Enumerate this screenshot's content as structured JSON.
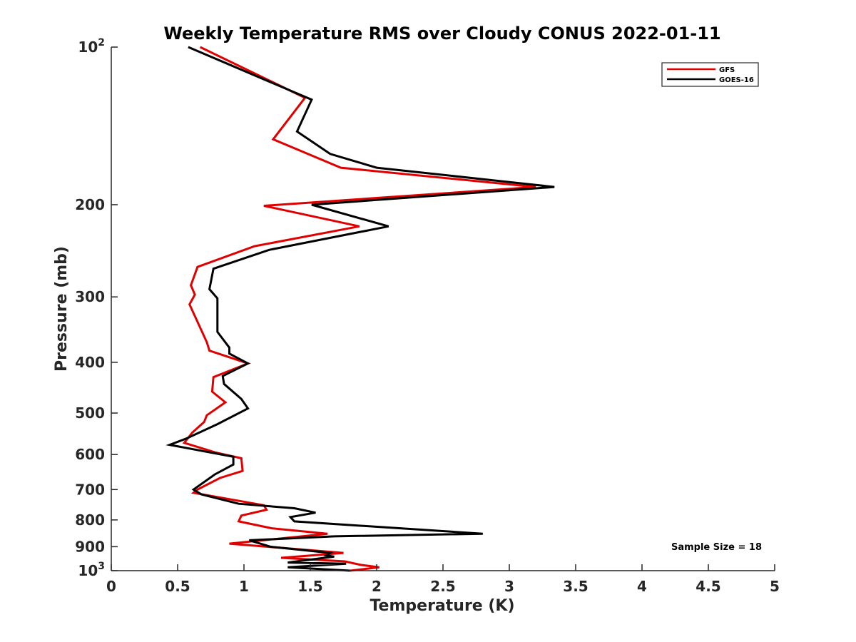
{
  "chart_data": {
    "type": "line",
    "title": "Weekly Temperature RMS over Cloudy CONUS 2022-01-11",
    "xlabel": "Temperature (K)",
    "ylabel": "Pressure (mb)",
    "xlim": [
      0,
      5
    ],
    "ylim": [
      100,
      1000
    ],
    "y_scale": "log",
    "y_reversed": true,
    "grid": false,
    "legend_position": "top-right",
    "x_ticks": [
      {
        "value": 0,
        "label": "0"
      },
      {
        "value": 0.5,
        "label": "0.5"
      },
      {
        "value": 1,
        "label": "1"
      },
      {
        "value": 1.5,
        "label": "1.5"
      },
      {
        "value": 2,
        "label": "2"
      },
      {
        "value": 2.5,
        "label": "2.5"
      },
      {
        "value": 3,
        "label": "3"
      },
      {
        "value": 3.5,
        "label": "3.5"
      },
      {
        "value": 4,
        "label": "4"
      },
      {
        "value": 4.5,
        "label": "4.5"
      },
      {
        "value": 5,
        "label": "5"
      }
    ],
    "y_ticks": [
      {
        "value": 100,
        "base": "10",
        "exp": "2"
      },
      {
        "value": 200,
        "label": "200"
      },
      {
        "value": 300,
        "label": "300"
      },
      {
        "value": 400,
        "label": "400"
      },
      {
        "value": 500,
        "label": "500"
      },
      {
        "value": 600,
        "label": "600"
      },
      {
        "value": 700,
        "label": "700"
      },
      {
        "value": 800,
        "label": "800"
      },
      {
        "value": 900,
        "label": "900"
      },
      {
        "value": 1000,
        "base": "10",
        "exp": "3"
      }
    ],
    "series": [
      {
        "name": "GFS",
        "color": "#e00000",
        "points": [
          [
            0.67,
            100
          ],
          [
            1.46,
            125
          ],
          [
            1.22,
            150
          ],
          [
            1.73,
            170
          ],
          [
            3.2,
            185
          ],
          [
            1.15,
            201
          ],
          [
            1.87,
            220
          ],
          [
            1.08,
            240
          ],
          [
            0.65,
            263
          ],
          [
            0.6,
            285
          ],
          [
            0.63,
            297
          ],
          [
            0.59,
            310
          ],
          [
            0.72,
            366
          ],
          [
            0.74,
            380
          ],
          [
            1.03,
            402
          ],
          [
            0.77,
            427
          ],
          [
            0.76,
            455
          ],
          [
            0.86,
            477
          ],
          [
            0.72,
            505
          ],
          [
            0.7,
            520
          ],
          [
            0.61,
            545
          ],
          [
            0.55,
            570
          ],
          [
            0.79,
            595
          ],
          [
            0.98,
            610
          ],
          [
            0.99,
            645
          ],
          [
            0.82,
            665
          ],
          [
            0.65,
            700
          ],
          [
            0.62,
            710
          ],
          [
            1.15,
            750
          ],
          [
            1.17,
            765
          ],
          [
            0.98,
            785
          ],
          [
            0.96,
            805
          ],
          [
            1.21,
            830
          ],
          [
            1.63,
            850
          ],
          [
            0.89,
            888
          ],
          [
            1.75,
            925
          ],
          [
            1.28,
            945
          ],
          [
            1.76,
            960
          ],
          [
            1.88,
            975
          ],
          [
            2.02,
            985
          ],
          [
            1.8,
            1000
          ]
        ]
      },
      {
        "name": "GOES-16",
        "color": "#000000",
        "points": [
          [
            0.58,
            100
          ],
          [
            1.51,
            126
          ],
          [
            1.4,
            145
          ],
          [
            1.65,
            160
          ],
          [
            2.0,
            170
          ],
          [
            3.34,
            185
          ],
          [
            1.51,
            200
          ],
          [
            2.09,
            220
          ],
          [
            1.19,
            244
          ],
          [
            0.77,
            265
          ],
          [
            0.74,
            290
          ],
          [
            0.8,
            302
          ],
          [
            0.8,
            350
          ],
          [
            0.89,
            375
          ],
          [
            0.89,
            385
          ],
          [
            1.03,
            402
          ],
          [
            0.84,
            425
          ],
          [
            0.85,
            440
          ],
          [
            0.98,
            470
          ],
          [
            1.03,
            490
          ],
          [
            0.8,
            525
          ],
          [
            0.56,
            560
          ],
          [
            0.44,
            575
          ],
          [
            0.92,
            606
          ],
          [
            0.92,
            627
          ],
          [
            0.78,
            655
          ],
          [
            0.62,
            700
          ],
          [
            0.68,
            715
          ],
          [
            0.96,
            745
          ],
          [
            1.38,
            760
          ],
          [
            1.54,
            775
          ],
          [
            1.35,
            790
          ],
          [
            1.38,
            805
          ],
          [
            2.8,
            850
          ],
          [
            1.68,
            860
          ],
          [
            1.04,
            875
          ],
          [
            1.2,
            900
          ],
          [
            1.65,
            925
          ],
          [
            1.62,
            935
          ],
          [
            1.68,
            940
          ],
          [
            1.33,
            965
          ],
          [
            1.77,
            970
          ],
          [
            1.33,
            985
          ],
          [
            1.8,
            1000
          ]
        ]
      }
    ],
    "annotations": [
      {
        "text": "Sample Size = 18",
        "anchor": "lower-right"
      }
    ]
  }
}
